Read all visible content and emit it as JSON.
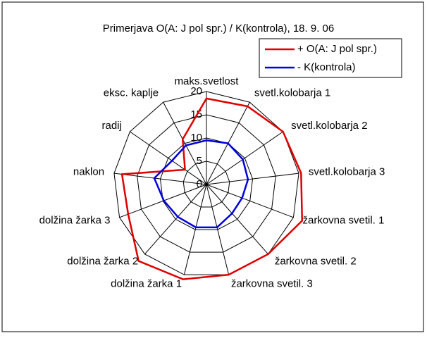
{
  "chart_data": {
    "type": "radar",
    "title": "Primerjava O(A: J pol spr.) / K(kontrola), 18. 9. 06",
    "categories": [
      "maks.svetlost",
      "svetl.kolobarja 1",
      "svetl.kolobarja 2",
      "svetl.kolobarja 3",
      "žarkovna svetil. 1",
      "žarkovna svetil. 2",
      "žarkovna svetil. 3",
      "dolžina žarka 1",
      "dolžina žarka 2",
      "dolžina žarka 3",
      "naklon",
      "radij",
      "eksc. kaplje"
    ],
    "series": [
      {
        "name": "+ O(A: J pol spr.)",
        "color": "#e00000",
        "values": [
          18.5,
          19,
          20,
          20.5,
          22,
          20,
          20,
          21,
          22,
          18,
          18.3,
          5.6,
          11
        ]
      },
      {
        "name": "- K(kontrola)",
        "color": "#0000e0",
        "values": [
          9.5,
          10,
          9.5,
          9,
          8.2,
          8.3,
          9.5,
          9.5,
          9.3,
          9.8,
          11.3,
          9,
          9.5
        ]
      }
    ],
    "ylim": [
      0,
      20
    ],
    "yticks": [
      0,
      5,
      10,
      15,
      20
    ],
    "grid": true,
    "legend": "top-right"
  }
}
